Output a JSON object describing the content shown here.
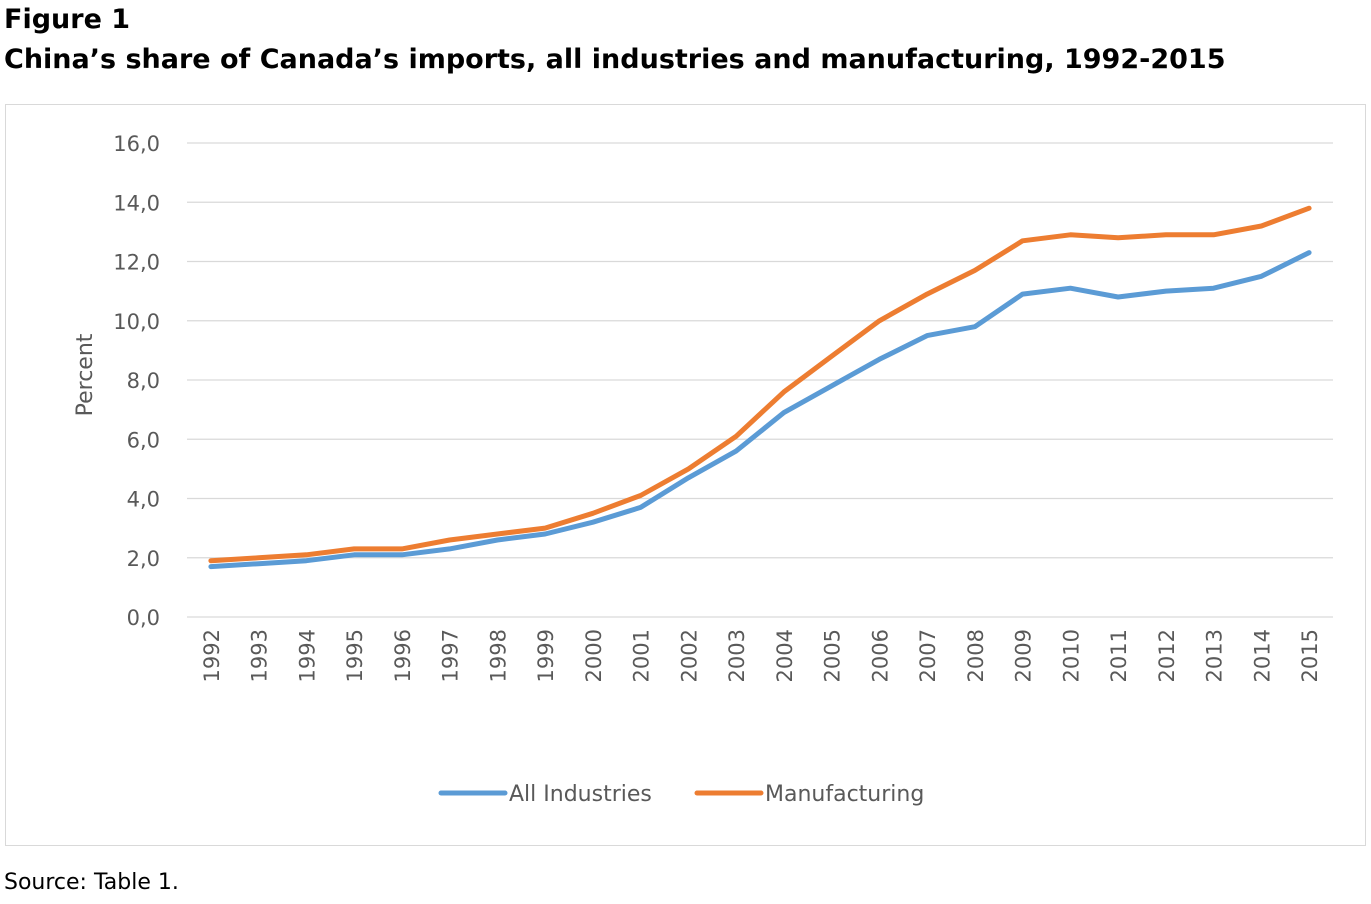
{
  "figure": {
    "label": "Figure 1",
    "title": "China’s share of Canada’s imports, all industries and manufacturing, 1992-2015"
  },
  "source": "Source: Table 1.",
  "colors": {
    "all_industries": "#5b9bd5",
    "manufacturing": "#ed7d31",
    "gridline": "#d9d9d9",
    "axis_text": "#595959"
  },
  "chart_data": {
    "type": "line",
    "title": "China’s share of Canada’s imports, all industries and manufacturing, 1992-2015",
    "xlabel": "",
    "ylabel": "Percent",
    "ylim": [
      0,
      16
    ],
    "yticks": [
      "0,0",
      "2,0",
      "4,0",
      "6,0",
      "8,0",
      "10,0",
      "12,0",
      "14,0",
      "16,0"
    ],
    "grid": true,
    "legend_position": "bottom",
    "x": [
      "1992",
      "1993",
      "1994",
      "1995",
      "1996",
      "1997",
      "1998",
      "1999",
      "2000",
      "2001",
      "2002",
      "2003",
      "2004",
      "2005",
      "2006",
      "2007",
      "2008",
      "2009",
      "2010",
      "2011",
      "2012",
      "2013",
      "2014",
      "2015"
    ],
    "series": [
      {
        "name": "All Industries",
        "color": "#5b9bd5",
        "values": [
          1.7,
          1.8,
          1.9,
          2.1,
          2.1,
          2.3,
          2.6,
          2.8,
          3.2,
          3.7,
          4.7,
          5.6,
          6.9,
          7.8,
          8.7,
          9.5,
          9.8,
          10.9,
          11.1,
          10.8,
          11.0,
          11.1,
          11.5,
          12.3
        ]
      },
      {
        "name": "Manufacturing",
        "color": "#ed7d31",
        "values": [
          1.9,
          2.0,
          2.1,
          2.3,
          2.3,
          2.6,
          2.8,
          3.0,
          3.5,
          4.1,
          5.0,
          6.1,
          7.6,
          8.8,
          10.0,
          10.9,
          11.7,
          12.7,
          12.9,
          12.8,
          12.9,
          12.9,
          13.2,
          13.8
        ]
      }
    ]
  }
}
